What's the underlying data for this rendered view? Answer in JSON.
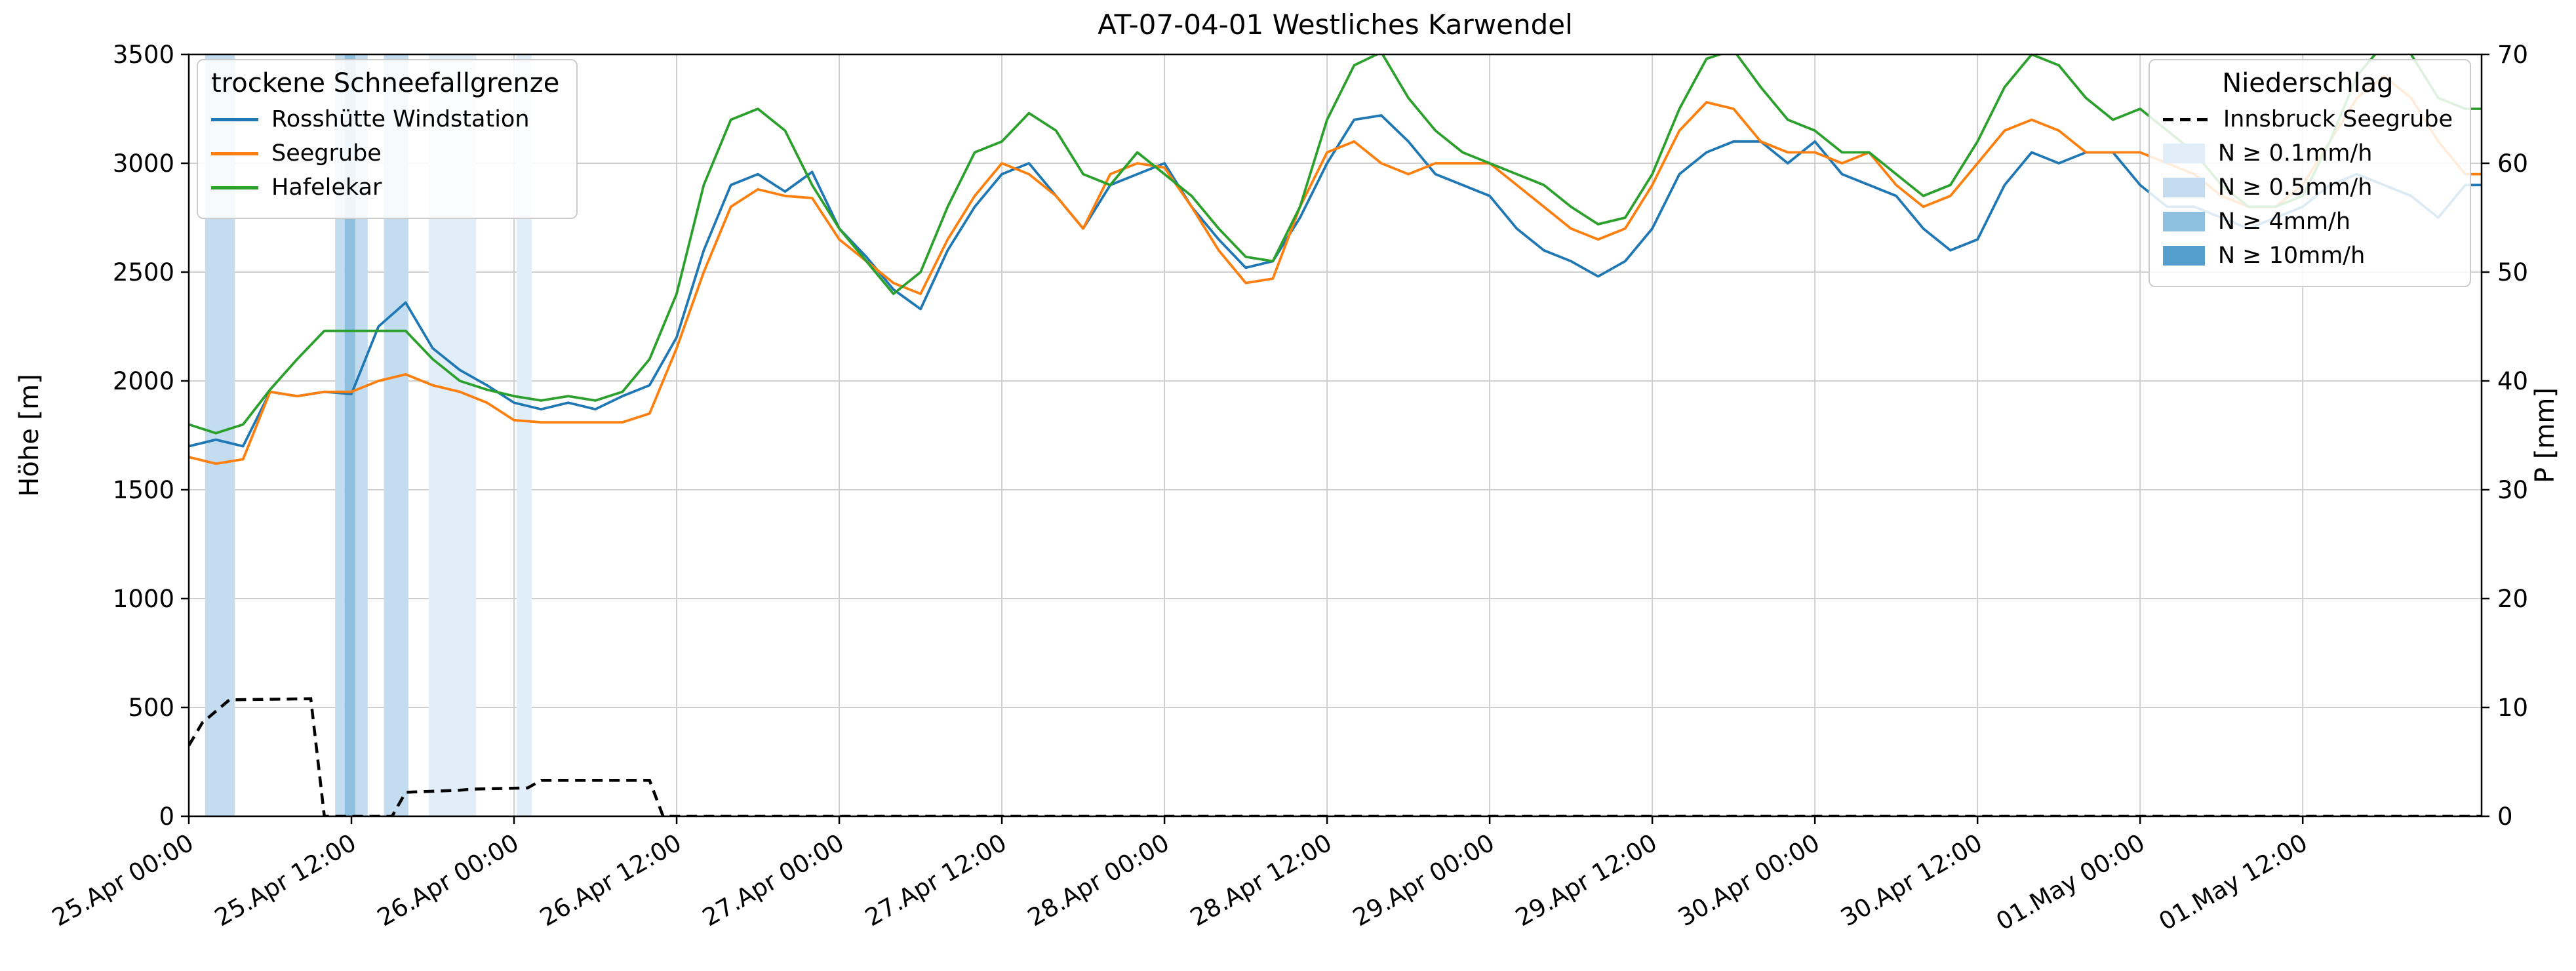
{
  "title": "AT-07-04-01 Westliches Karwendel",
  "axes": {
    "left_label": "Höhe [m]",
    "right_label": "P [mm]",
    "left_ticks": [
      0,
      500,
      1000,
      1500,
      2000,
      2500,
      3000,
      3500
    ],
    "right_ticks": [
      0,
      10,
      20,
      30,
      40,
      50,
      60,
      70
    ],
    "x_tick_hours": [
      0,
      12,
      24,
      36,
      48,
      60,
      72,
      84,
      96,
      108,
      120,
      132,
      144,
      156
    ],
    "x_tick_labels": [
      "25.Apr 00:00",
      "25.Apr 12:00",
      "26.Apr 00:00",
      "26.Apr 12:00",
      "27.Apr 00:00",
      "27.Apr 12:00",
      "28.Apr 00:00",
      "28.Apr 12:00",
      "29.Apr 00:00",
      "29.Apr 12:00",
      "30.Apr 00:00",
      "30.Apr 12:00",
      "01.May 00:00",
      "01.May 12:00"
    ]
  },
  "legend_snowline": {
    "title": "trockene Schneefallgrenze",
    "entries": [
      {
        "label": "Rosshütte Windstation",
        "swatch": "line",
        "color": "#1f77b4"
      },
      {
        "label": "Seegrube",
        "swatch": "line",
        "color": "#ff7f0e"
      },
      {
        "label": "Hafelekar",
        "swatch": "line",
        "color": "#2ca02c"
      }
    ]
  },
  "legend_precip": {
    "title": "Niederschlag",
    "entries": [
      {
        "label": "Innsbruck Seegrube",
        "swatch": "dashed-line",
        "color": "#000000"
      },
      {
        "label": "N ≥ 0.1mm/h",
        "swatch": "patch",
        "color": "#e1edf8"
      },
      {
        "label": "N ≥ 0.5mm/h",
        "swatch": "patch",
        "color": "#c3dcef"
      },
      {
        "label": "N ≥ 4mm/h",
        "swatch": "patch",
        "color": "#8fc0e0"
      },
      {
        "label": "N ≥ 10mm/h",
        "swatch": "patch",
        "color": "#539ecc"
      }
    ]
  },
  "chart_data": {
    "type": "line",
    "title": "AT-07-04-01 Westliches Karwendel",
    "xlabel": "",
    "ylabel_left": "Höhe [m]",
    "ylabel_right": "P [mm]",
    "x_unit": "hours since 25.Apr 00:00",
    "x_range": [
      0,
      169.2
    ],
    "x_step": 2,
    "ylim_left": [
      0,
      3500
    ],
    "ylim_right": [
      0,
      70
    ],
    "grid": true,
    "series": [
      {
        "name": "Rosshütte Windstation",
        "color": "#1f77b4",
        "axis": "left",
        "values": [
          1700,
          1730,
          1700,
          1950,
          1930,
          1950,
          1940,
          2250,
          2360,
          2150,
          2050,
          1980,
          1900,
          1870,
          1900,
          1870,
          1930,
          1980,
          2200,
          2600,
          2900,
          2950,
          2870,
          2960,
          2700,
          2570,
          2420,
          2330,
          2600,
          2800,
          2950,
          3000,
          2850,
          2700,
          2900,
          2950,
          3000,
          2800,
          2650,
          2520,
          2550,
          2750,
          3000,
          3200,
          3220,
          3100,
          2950,
          2900,
          2850,
          2700,
          2600,
          2550,
          2480,
          2550,
          2700,
          2950,
          3050,
          3100,
          3100,
          3000,
          3100,
          2950,
          2900,
          2850,
          2700,
          2600,
          2650,
          2900,
          3050,
          3000,
          3050,
          3050,
          2900,
          2800,
          2800,
          2750,
          2700,
          2750,
          2800,
          2900,
          2950,
          2900,
          2850,
          2750,
          2900
        ]
      },
      {
        "name": "Seegrube",
        "color": "#ff7f0e",
        "axis": "left",
        "values": [
          1650,
          1620,
          1640,
          1950,
          1930,
          1950,
          1950,
          2000,
          2030,
          1980,
          1950,
          1900,
          1820,
          1810,
          1810,
          1810,
          1810,
          1850,
          2150,
          2500,
          2800,
          2880,
          2850,
          2840,
          2650,
          2550,
          2450,
          2400,
          2650,
          2850,
          3000,
          2950,
          2850,
          2700,
          2950,
          3000,
          2980,
          2800,
          2600,
          2450,
          2470,
          2800,
          3050,
          3100,
          3000,
          2950,
          3000,
          3000,
          3000,
          2900,
          2800,
          2700,
          2650,
          2700,
          2900,
          3150,
          3280,
          3250,
          3100,
          3050,
          3050,
          3000,
          3050,
          2900,
          2800,
          2850,
          3000,
          3150,
          3200,
          3150,
          3050,
          3050,
          3050,
          3000,
          2950,
          2850,
          2800,
          2800,
          2900,
          3100,
          3300,
          3400,
          3300,
          3100,
          2950
        ]
      },
      {
        "name": "Hafelekar",
        "color": "#2ca02c",
        "axis": "left",
        "values": [
          1800,
          1760,
          1800,
          1960,
          2100,
          2230,
          2230,
          2230,
          2230,
          2100,
          2000,
          1960,
          1930,
          1910,
          1930,
          1910,
          1950,
          2100,
          2400,
          2900,
          3200,
          3250,
          3150,
          2900,
          2700,
          2550,
          2400,
          2500,
          2800,
          3050,
          3100,
          3230,
          3150,
          2950,
          2900,
          3050,
          2950,
          2850,
          2700,
          2570,
          2550,
          2800,
          3200,
          3450,
          3510,
          3300,
          3150,
          3050,
          3000,
          2950,
          2900,
          2800,
          2720,
          2750,
          2950,
          3250,
          3480,
          3520,
          3350,
          3200,
          3150,
          3050,
          3050,
          2950,
          2850,
          2900,
          3100,
          3350,
          3500,
          3450,
          3300,
          3200,
          3250,
          3150,
          3050,
          2900,
          2800,
          2800,
          2850,
          3100,
          3400,
          3550,
          3500,
          3300,
          3250
        ]
      }
    ],
    "precip_line": {
      "name": "Innsbruck Seegrube",
      "color": "#000000",
      "style": "dashed",
      "axis": "right",
      "points": [
        [
          0,
          6.5
        ],
        [
          1,
          8.6
        ],
        [
          3,
          10.7
        ],
        [
          9,
          10.8
        ],
        [
          10,
          0
        ],
        [
          15,
          0
        ],
        [
          16,
          2.2
        ],
        [
          20,
          2.4
        ],
        [
          21,
          2.5
        ],
        [
          25,
          2.6
        ],
        [
          26,
          3.3
        ],
        [
          34,
          3.3
        ],
        [
          35,
          0
        ],
        [
          169.2,
          0
        ]
      ]
    },
    "precip_bands": [
      {
        "start": 1.2,
        "end": 3.4,
        "level": "0.5"
      },
      {
        "start": 10.8,
        "end": 11.5,
        "level": "0.5"
      },
      {
        "start": 11.5,
        "end": 12.3,
        "level": "4"
      },
      {
        "start": 12.3,
        "end": 13.2,
        "level": "0.5"
      },
      {
        "start": 14.4,
        "end": 16.2,
        "level": "0.5"
      },
      {
        "start": 17.7,
        "end": 21.2,
        "level": "0.1"
      },
      {
        "start": 24.2,
        "end": 25.3,
        "level": "0.1"
      }
    ],
    "band_colors": {
      "0.1": "#e1edf8",
      "0.5": "#c3dcef",
      "4": "#8fc0e0",
      "10": "#539ecc"
    },
    "legend_position": {
      "snowline": "upper left",
      "precip": "upper right"
    }
  }
}
